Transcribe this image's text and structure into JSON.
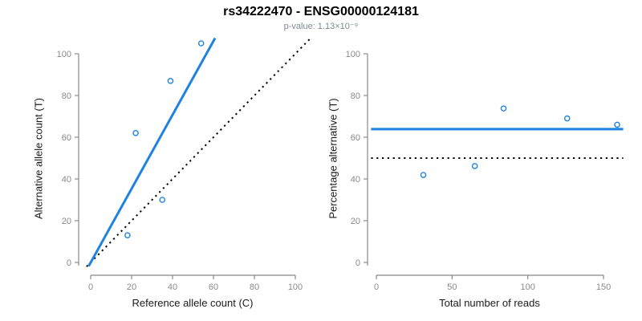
{
  "header": {
    "title": "rs34222470 - ENSG00000124181",
    "subtitle": "p-value: 1.13×10⁻⁹"
  },
  "colors": {
    "accent_blue": "#1E82E0",
    "dotted_line_black": "#000000",
    "axis_gray": "#888888",
    "tick_label_gray": "#8a8a8a",
    "axis_title_black": "#1a1a1a",
    "subtitle_gray": "#7d8894"
  },
  "chart_data": [
    {
      "id": "allele-count-scatter",
      "type": "scatter",
      "xlabel": "Reference allele count (C)",
      "ylabel": "Alternative allele count (T)",
      "xticks": [
        0,
        20,
        40,
        60,
        80,
        100
      ],
      "yticks": [
        0,
        20,
        40,
        60,
        80,
        100
      ],
      "xlim": [
        0,
        107
      ],
      "ylim": [
        0,
        108
      ],
      "grid": false,
      "legend": false,
      "point_style": "open-circle",
      "points": [
        [
          18,
          13
        ],
        [
          22,
          62
        ],
        [
          35,
          30
        ],
        [
          39,
          87
        ],
        [
          54,
          105
        ]
      ],
      "lines": [
        {
          "name": "allelic-ratio-fit-line",
          "style": "solid",
          "color": "#1E82E0",
          "width": 3,
          "from": [
            -1,
            -1.8
          ],
          "to": [
            60.8,
            107.5
          ]
        },
        {
          "name": "identity-line",
          "style": "dotted",
          "color": "#000000",
          "width": 2,
          "from": [
            -2,
            -2
          ],
          "to": [
            107.5,
            107.5
          ]
        }
      ]
    },
    {
      "id": "percentage-vs-reads-scatter",
      "type": "scatter",
      "xlabel": "Total number of reads",
      "ylabel": "Percentage alternative (T)",
      "xticks": [
        0,
        50,
        100,
        150
      ],
      "yticks": [
        0,
        20,
        40,
        60,
        80,
        100
      ],
      "xlim": [
        0,
        163
      ],
      "ylim": [
        0,
        100
      ],
      "grid": false,
      "legend": false,
      "point_style": "open-circle",
      "points": [
        [
          31,
          41.9
        ],
        [
          65,
          46.2
        ],
        [
          84,
          73.8
        ],
        [
          126,
          69.0
        ],
        [
          159,
          66.0
        ]
      ],
      "lines": [
        {
          "name": "mean-percentage-line",
          "style": "solid",
          "color": "#1E82E0",
          "width": 3,
          "from": [
            -3.5,
            63.9
          ],
          "to": [
            163,
            63.9
          ]
        },
        {
          "name": "fifty-percent-line",
          "style": "dotted",
          "color": "#000000",
          "width": 2,
          "from": [
            -3.5,
            50
          ],
          "to": [
            163,
            50
          ]
        }
      ]
    }
  ]
}
